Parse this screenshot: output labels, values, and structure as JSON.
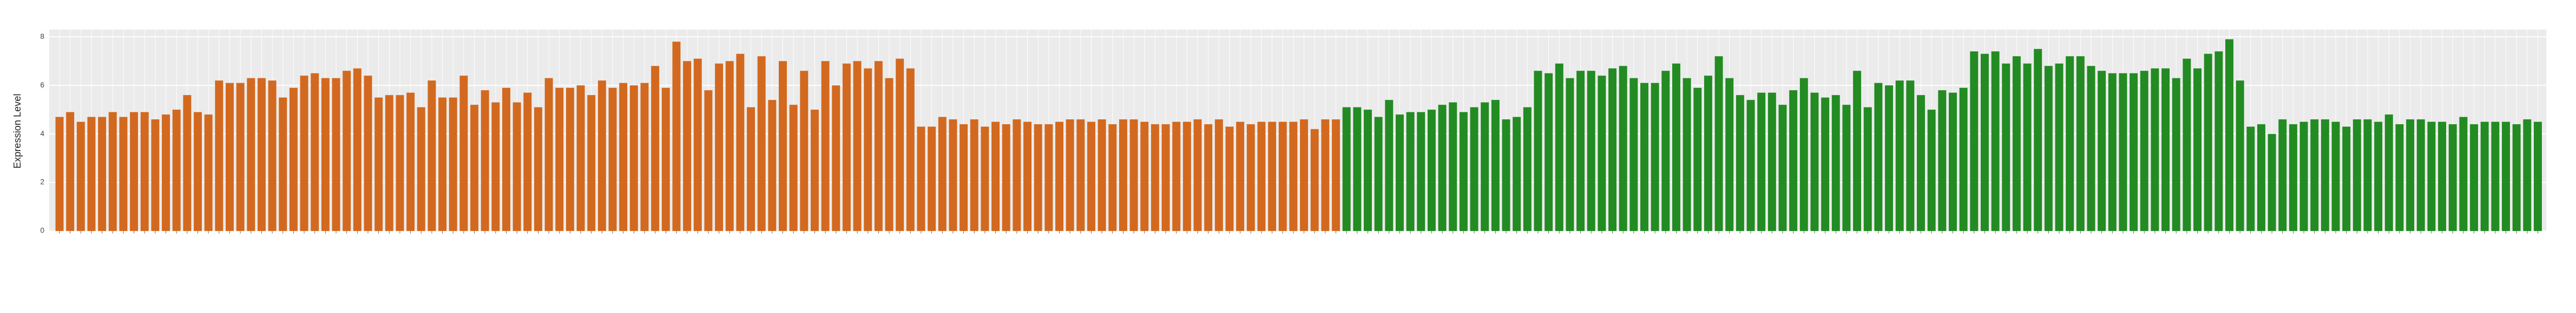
{
  "chart_data": {
    "type": "bar",
    "y_label": "Expression Level",
    "ylim": [
      0,
      8.3
    ],
    "yticks": [
      0,
      2,
      4,
      6,
      8
    ],
    "grid": true,
    "series": [
      {
        "color": "#d2691e",
        "values": [
          4.7,
          4.9,
          4.5,
          4.7,
          4.7,
          4.9,
          4.7,
          4.9,
          4.9,
          4.6,
          4.8,
          5.0,
          5.6,
          4.9,
          4.8,
          6.2,
          6.1,
          6.1,
          6.3,
          6.3,
          6.2,
          5.5,
          5.9,
          6.4,
          6.5,
          6.3,
          6.3,
          6.6,
          6.7,
          6.4,
          5.5,
          5.6,
          5.6,
          5.7,
          5.1,
          6.2,
          5.5,
          5.5,
          6.4,
          5.2,
          5.8,
          5.3,
          5.9,
          5.3,
          5.7,
          5.1,
          6.3,
          5.9,
          5.9,
          6.0,
          5.6,
          6.2,
          5.9,
          6.1,
          6.0,
          6.1,
          6.8,
          5.9,
          7.8,
          7.0,
          7.1,
          5.8,
          6.9,
          7.0,
          7.3,
          5.1,
          7.2,
          5.4,
          7.0,
          5.2,
          6.6,
          5.0,
          7.0,
          6.0,
          6.9,
          7.0,
          6.7,
          7.0,
          6.3,
          7.1,
          6.7,
          4.3,
          4.3,
          4.7,
          4.6,
          4.4,
          4.6,
          4.3,
          4.5,
          4.4,
          4.6,
          4.5,
          4.4,
          4.4,
          4.5,
          4.6,
          4.6,
          4.5,
          4.6,
          4.4,
          4.6,
          4.6,
          4.5,
          4.4,
          4.4,
          4.5,
          4.5,
          4.6,
          4.4,
          4.6,
          4.3,
          4.5,
          4.4,
          4.5,
          4.5,
          4.5,
          4.5,
          4.6,
          4.2,
          4.6,
          4.6
        ]
      },
      {
        "color": "#228b22",
        "values": [
          5.1,
          5.1,
          5.0,
          4.7,
          5.4,
          4.8,
          4.9,
          4.9,
          5.0,
          5.2,
          5.3,
          4.9,
          5.1,
          5.3,
          5.4,
          4.6,
          4.7,
          5.1,
          6.6,
          6.5,
          6.9,
          6.3,
          6.6,
          6.6,
          6.4,
          6.7,
          6.8,
          6.3,
          6.1,
          6.1,
          6.6,
          6.9,
          6.3,
          5.9,
          6.4,
          7.2,
          6.3,
          5.6,
          5.4,
          5.7,
          5.7,
          5.2,
          5.8,
          6.3,
          5.7,
          5.5,
          5.6,
          5.2,
          6.6,
          5.1,
          6.1,
          6.0,
          6.2,
          6.2,
          5.6,
          5.0,
          5.8,
          5.7,
          5.9,
          7.4,
          7.3,
          7.4,
          6.9,
          7.2,
          6.9,
          7.5,
          6.8,
          6.9,
          7.2,
          7.2,
          6.8,
          6.6,
          6.5,
          6.5,
          6.5,
          6.6,
          6.7,
          6.7,
          6.3,
          7.1,
          6.7,
          7.3,
          7.4,
          7.9,
          6.2,
          4.3,
          4.4,
          4.0,
          4.6,
          4.4,
          4.5,
          4.6,
          4.6,
          4.5,
          4.3,
          4.6,
          4.6,
          4.5,
          4.8,
          4.4,
          4.6,
          4.6,
          4.5,
          4.5,
          4.4,
          4.7,
          4.4,
          4.5,
          4.5,
          4.5,
          4.4,
          4.6,
          4.5
        ]
      }
    ]
  }
}
